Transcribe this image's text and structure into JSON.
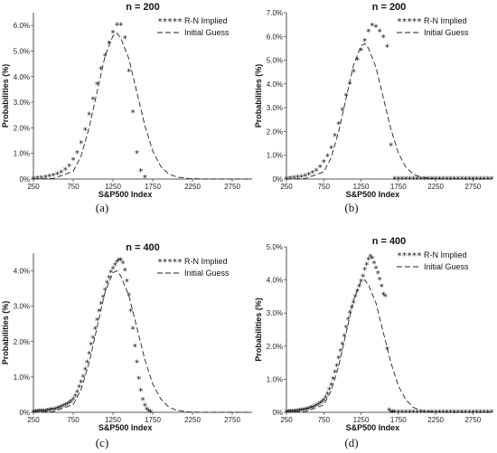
{
  "chart_data": [
    {
      "id": "a",
      "type": "scatter",
      "title": "n = 200",
      "caption": "(a)",
      "xlabel": "S&P500 Index",
      "ylabel": "Probabilities (%)",
      "xlim": [
        250,
        3000
      ],
      "ylim": [
        0,
        6.5
      ],
      "xticks": [
        "250",
        "750",
        "1250",
        "1750",
        "2250",
        "2750"
      ],
      "yticks": [
        "0%",
        "1.0%",
        "2.0%",
        "3.0%",
        "4.0%",
        "5.0%",
        "6.0%"
      ],
      "grid": false,
      "legend": "top-right",
      "series": [
        {
          "name": "R-N Implied",
          "style": "markers",
          "x": [
            250,
            300,
            350,
            400,
            450,
            500,
            550,
            600,
            650,
            700,
            750,
            800,
            850,
            900,
            950,
            1000,
            1050,
            1100,
            1150,
            1200,
            1250,
            1300,
            1350,
            1400,
            1450,
            1500,
            1550,
            1600,
            1650
          ],
          "y": [
            0.0,
            0.02,
            0.04,
            0.06,
            0.08,
            0.12,
            0.17,
            0.25,
            0.35,
            0.5,
            0.75,
            1.0,
            1.4,
            1.9,
            2.5,
            3.1,
            3.7,
            4.3,
            4.8,
            5.3,
            5.7,
            6.0,
            6.0,
            5.5,
            4.2,
            2.6,
            1.0,
            0.3,
            0.05
          ]
        },
        {
          "name": "Initial Guess",
          "style": "dash",
          "x": [
            250,
            500,
            750,
            850,
            950,
            1050,
            1150,
            1250,
            1300,
            1350,
            1450,
            1550,
            1650,
            1750,
            1850,
            1950,
            2050,
            2200,
            2400,
            2700,
            3000
          ],
          "y": [
            0.0,
            0.02,
            0.3,
            0.9,
            2.0,
            3.4,
            4.8,
            5.6,
            5.7,
            5.5,
            4.7,
            3.4,
            2.1,
            1.1,
            0.5,
            0.2,
            0.08,
            0.02,
            0.0,
            0.0,
            0.0
          ]
        }
      ]
    },
    {
      "id": "b",
      "type": "scatter",
      "title": "n = 200",
      "caption": "(b)",
      "xlabel": "S&P500 Index",
      "ylabel": "Probabilities (%)",
      "xlim": [
        250,
        3000
      ],
      "ylim": [
        0,
        7.0
      ],
      "xticks": [
        "250",
        "750",
        "1250",
        "1750",
        "2250",
        "2750"
      ],
      "yticks": [
        "0%",
        "1.0%",
        "2.0%",
        "3.0%",
        "4.0%",
        "5.0%",
        "6.0%",
        "7.0%"
      ],
      "grid": false,
      "legend": "top-right",
      "series": [
        {
          "name": "R-N Implied",
          "style": "markers",
          "x": [
            250,
            300,
            350,
            400,
            450,
            500,
            550,
            600,
            650,
            700,
            750,
            800,
            850,
            900,
            950,
            1000,
            1050,
            1100,
            1150,
            1200,
            1250,
            1300,
            1350,
            1400,
            1450,
            1500,
            1550,
            1600,
            1650,
            1700,
            1750,
            1800,
            1850,
            1900,
            1950,
            2000,
            2050,
            2100,
            2150,
            2200,
            2250,
            2300,
            2350,
            2400,
            2450,
            2500,
            2550,
            2600,
            2650,
            2700,
            2750,
            2800,
            2850,
            2900,
            2950,
            3000
          ],
          "y": [
            0.0,
            0.02,
            0.04,
            0.06,
            0.08,
            0.12,
            0.17,
            0.25,
            0.35,
            0.5,
            0.7,
            0.95,
            1.3,
            1.8,
            2.3,
            2.9,
            3.5,
            4.0,
            4.5,
            5.0,
            5.4,
            5.8,
            6.2,
            6.45,
            6.4,
            6.2,
            5.95,
            5.55,
            1.4,
            0.0,
            0.0,
            0.0,
            0.0,
            0.0,
            0.0,
            0.0,
            0.0,
            0.0,
            0.0,
            0.0,
            0.0,
            0.0,
            0.0,
            0.0,
            0.0,
            0.0,
            0.0,
            0.0,
            0.0,
            0.0,
            0.0,
            0.0,
            0.0,
            0.0,
            0.0,
            0.0
          ]
        },
        {
          "name": "Initial Guess",
          "style": "dash",
          "x": [
            250,
            500,
            750,
            850,
            950,
            1050,
            1150,
            1250,
            1300,
            1350,
            1450,
            1550,
            1650,
            1750,
            1850,
            1950,
            2050,
            2200,
            2400,
            2700,
            3000
          ],
          "y": [
            0.0,
            0.02,
            0.3,
            0.9,
            2.0,
            3.4,
            4.8,
            5.6,
            5.7,
            5.5,
            4.7,
            3.4,
            2.1,
            1.1,
            0.5,
            0.2,
            0.08,
            0.02,
            0.0,
            0.0,
            0.0
          ]
        }
      ]
    },
    {
      "id": "c",
      "type": "scatter",
      "title": "n = 400",
      "caption": "(c)",
      "xlabel": "S&P500 Index",
      "ylabel": "Probabilities (%)",
      "xlim": [
        250,
        3000
      ],
      "ylim": [
        0,
        4.5
      ],
      "xticks": [
        "250",
        "750",
        "1250",
        "1750",
        "2250",
        "2750"
      ],
      "yticks": [
        "0%",
        "1.0%",
        "2.0%",
        "3.0%",
        "4.0%"
      ],
      "grid": false,
      "legend": "top-right",
      "series": [
        {
          "name": "R-N Implied",
          "style": "markers",
          "x": [
            250,
            275,
            300,
            325,
            350,
            375,
            400,
            425,
            450,
            475,
            500,
            525,
            550,
            575,
            600,
            625,
            650,
            675,
            700,
            725,
            750,
            775,
            800,
            825,
            850,
            875,
            900,
            925,
            950,
            975,
            1000,
            1025,
            1050,
            1075,
            1100,
            1125,
            1150,
            1175,
            1200,
            1225,
            1250,
            1275,
            1300,
            1325,
            1350,
            1375,
            1400,
            1425,
            1450,
            1475,
            1500,
            1525,
            1550,
            1575,
            1600,
            1625,
            1650,
            1675,
            1700,
            1725
          ],
          "y": [
            0.0,
            0.01,
            0.01,
            0.02,
            0.02,
            0.03,
            0.03,
            0.04,
            0.05,
            0.06,
            0.07,
            0.08,
            0.1,
            0.12,
            0.14,
            0.16,
            0.19,
            0.22,
            0.26,
            0.3,
            0.36,
            0.45,
            0.56,
            0.7,
            0.85,
            1.0,
            1.2,
            1.4,
            1.65,
            1.9,
            2.1,
            2.35,
            2.6,
            2.85,
            3.05,
            3.25,
            3.45,
            3.65,
            3.8,
            3.95,
            4.05,
            4.15,
            4.25,
            4.3,
            4.3,
            4.2,
            4.0,
            3.7,
            3.3,
            2.85,
            2.35,
            1.85,
            1.4,
            0.95,
            0.6,
            0.35,
            0.18,
            0.08,
            0.03,
            0.0
          ]
        },
        {
          "name": "Initial Guess",
          "style": "dash",
          "x": [
            250,
            500,
            750,
            850,
            950,
            1050,
            1150,
            1250,
            1300,
            1350,
            1450,
            1550,
            1650,
            1750,
            1850,
            1950,
            2050,
            2200,
            2400,
            2700,
            3000
          ],
          "y": [
            0.0,
            0.02,
            0.22,
            0.65,
            1.4,
            2.4,
            3.4,
            3.95,
            4.0,
            3.85,
            3.3,
            2.4,
            1.5,
            0.8,
            0.38,
            0.15,
            0.06,
            0.01,
            0.0,
            0.0,
            0.0
          ]
        }
      ]
    },
    {
      "id": "d",
      "type": "scatter",
      "title": "n = 400",
      "caption": "(d)",
      "xlabel": "S&P500 Index",
      "ylabel": "Probabilities (%)",
      "xlim": [
        250,
        3000
      ],
      "ylim": [
        0,
        5.0
      ],
      "xticks": [
        "250",
        "750",
        "1250",
        "1750",
        "2250",
        "2750"
      ],
      "yticks": [
        "0%",
        "1.0%",
        "2.0%",
        "3.0%",
        "4.0%",
        "5.0%"
      ],
      "grid": false,
      "legend": "top-right",
      "series": [
        {
          "name": "R-N Implied",
          "style": "markers",
          "x": [
            250,
            275,
            300,
            325,
            350,
            375,
            400,
            425,
            450,
            475,
            500,
            525,
            550,
            575,
            600,
            625,
            650,
            675,
            700,
            725,
            750,
            775,
            800,
            825,
            850,
            875,
            900,
            925,
            950,
            975,
            1000,
            1025,
            1050,
            1075,
            1100,
            1125,
            1150,
            1175,
            1200,
            1225,
            1250,
            1275,
            1300,
            1325,
            1350,
            1375,
            1400,
            1425,
            1450,
            1475,
            1500,
            1525,
            1550,
            1575,
            1600,
            1625,
            1650,
            1675,
            1700,
            1750,
            1800,
            1850,
            1900,
            1950,
            2000,
            2050,
            2100,
            2150,
            2200,
            2250,
            2300,
            2350,
            2400,
            2450,
            2500,
            2550,
            2600,
            2650,
            2700,
            2750,
            2800,
            2850,
            2900,
            2950,
            3000
          ],
          "y": [
            0.0,
            0.01,
            0.01,
            0.02,
            0.02,
            0.03,
            0.03,
            0.04,
            0.05,
            0.06,
            0.07,
            0.08,
            0.1,
            0.12,
            0.14,
            0.16,
            0.19,
            0.22,
            0.26,
            0.3,
            0.36,
            0.44,
            0.55,
            0.68,
            0.82,
            1.0,
            1.2,
            1.4,
            1.62,
            1.85,
            2.05,
            2.3,
            2.55,
            2.8,
            3.0,
            3.15,
            3.3,
            3.5,
            3.65,
            3.8,
            3.95,
            4.1,
            4.3,
            4.45,
            4.6,
            4.7,
            4.65,
            4.5,
            4.35,
            4.2,
            4.0,
            3.8,
            3.55,
            3.5,
            1.9,
            0.05,
            0.0,
            0.0,
            0.0,
            0.0,
            0.0,
            0.0,
            0.0,
            0.0,
            0.0,
            0.0,
            0.0,
            0.0,
            0.0,
            0.0,
            0.0,
            0.0,
            0.0,
            0.0,
            0.0,
            0.0,
            0.0,
            0.0,
            0.0,
            0.0,
            0.0,
            0.0,
            0.0,
            0.0,
            0.0
          ]
        },
        {
          "name": "Initial Guess",
          "style": "dash",
          "x": [
            250,
            500,
            750,
            850,
            950,
            1050,
            1150,
            1250,
            1300,
            1350,
            1450,
            1550,
            1650,
            1750,
            1850,
            1950,
            2050,
            2200,
            2400,
            2700,
            3000
          ],
          "y": [
            0.0,
            0.02,
            0.22,
            0.65,
            1.4,
            2.4,
            3.4,
            3.95,
            4.0,
            3.85,
            3.3,
            2.4,
            1.5,
            0.8,
            0.38,
            0.15,
            0.06,
            0.01,
            0.0,
            0.0,
            0.0
          ]
        }
      ]
    }
  ]
}
